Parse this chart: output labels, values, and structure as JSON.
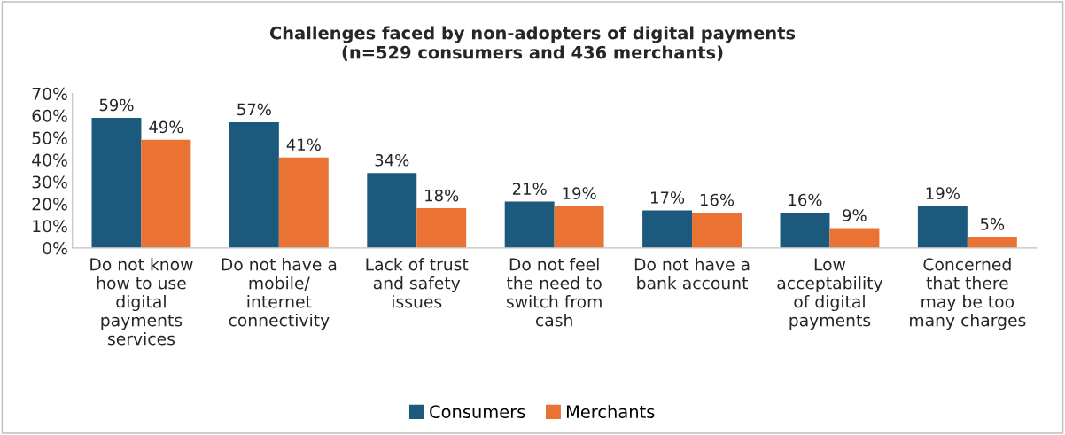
{
  "chart_data": {
    "type": "bar",
    "title": "Challenges faced by non-adopters of digital payments\n(n=529 consumers and 436 merchants)",
    "categories": [
      "Do not know\nhow to use\ndigital\npayments\nservices",
      "Do not have a\nmobile/\ninternet\nconnectivity",
      "Lack of trust\nand safety\nissues",
      "Do not feel\nthe need to\nswitch from\ncash",
      "Do not have a\nbank account",
      "Low\nacceptability\nof digital\npayments",
      "Concerned\nthat there\nmay be too\nmany charges"
    ],
    "series": [
      {
        "name": "Consumers",
        "color": "#1b5a7c",
        "values": [
          59,
          57,
          34,
          21,
          17,
          16,
          19
        ]
      },
      {
        "name": "Merchants",
        "color": "#ea7233",
        "values": [
          49,
          41,
          18,
          19,
          16,
          9,
          5
        ]
      }
    ],
    "ylim": [
      0,
      70
    ],
    "yticks": [
      {
        "value": 0,
        "label": "0%"
      },
      {
        "value": 10,
        "label": "10%"
      },
      {
        "value": 20,
        "label": "20%"
      },
      {
        "value": 30,
        "label": "30%"
      },
      {
        "value": 40,
        "label": "40%"
      },
      {
        "value": 50,
        "label": "50%"
      },
      {
        "value": 60,
        "label": "60%"
      },
      {
        "value": 70,
        "label": "70%"
      }
    ],
    "value_labels": [
      [
        "59%",
        "57%",
        "34%",
        "21%",
        "17%",
        "16%",
        "19%"
      ],
      [
        "49%",
        "41%",
        "18%",
        "19%",
        "16%",
        "9%",
        "5%"
      ]
    ],
    "grid": false,
    "legend": "bottom"
  }
}
